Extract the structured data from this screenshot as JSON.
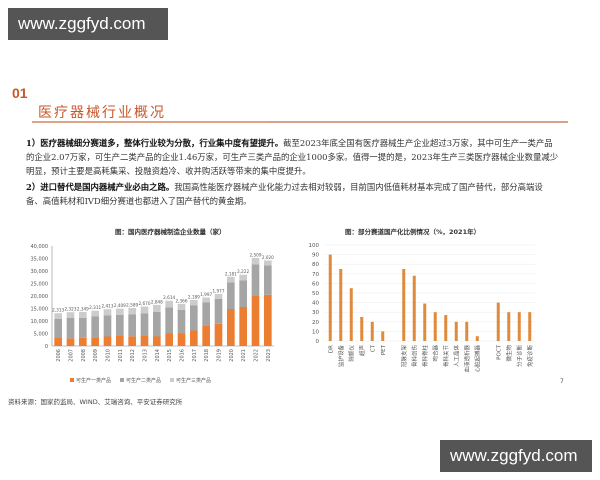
{
  "watermark": {
    "top": "www.zggfyd.com",
    "bottom": "www.zggfyd.com"
  },
  "section": {
    "number": "01",
    "title": "医疗器械行业概况"
  },
  "paragraphs": [
    {
      "lead": "1）医疗器械细分赛道多，整体行业较为分散，行业集中度有望提升。",
      "line1": "截至2023年底全国有医疗器械生产企业超过3万家，其中可生产一类产品",
      "line2": "的企业2.07万家，可生产二类产品的企业1.46万家，可生产三类产品的企业1000多家。值得一提的是，2023年生产三类医疗器械企业数量减少",
      "line3": "明显，预计主要是高耗集采、投融资趋冷、收并购活跃等带来的集中度提升。"
    },
    {
      "lead": "2）进口替代是国内器械产业必由之路。",
      "line1": "我国高性能医疗器械产业化能力过去相对较弱，目前国内低值耗材基本完成了国产替代，部分高端设",
      "line2": "备、高值耗材和IVD细分赛道也都进入了国产替代的黄金期。"
    }
  ],
  "chart_data": [
    {
      "type": "bar",
      "stacked": true,
      "title": "图：国内医疗器械制造企业数量（家）",
      "categories": [
        "2006",
        "2007",
        "2008",
        "2009",
        "2010",
        "2011",
        "2012",
        "2013",
        "2014",
        "2015",
        "2016",
        "2017",
        "2018",
        "2019",
        "2020",
        "2021",
        "2022",
        "2023"
      ],
      "series": [
        {
          "name": "可生产一类产品",
          "color": "#ed7d31",
          "values": [
            3200,
            3100,
            3300,
            3500,
            3800,
            4000,
            3900,
            4000,
            3800,
            5000,
            5000,
            6200,
            8000,
            8900,
            14800,
            15600,
            20300,
            20500
          ]
        },
        {
          "name": "可生产二类产品",
          "color": "#a5a5a5",
          "values": [
            7600,
            8100,
            8000,
            8300,
            8500,
            8500,
            8700,
            9100,
            9800,
            10500,
            9500,
            10000,
            9400,
            9900,
            10700,
            10700,
            12400,
            11700
          ]
        },
        {
          "name": "可生产三类产品",
          "color": "#cccccc",
          "values": [
            2313,
            2323,
            2349,
            2311,
            2413,
            2409,
            2589,
            2670,
            2848,
            2614,
            2366,
            2189,
            1997,
            1977,
            2181,
            2222,
            2509,
            2020
          ]
        }
      ],
      "data_labels": [
        "2,313",
        "2,323",
        "2,349",
        "2,311",
        "2,413",
        "2,409",
        "2,589",
        "2,670",
        "2,848",
        "2,614",
        "2,366",
        "2,189",
        "1,997",
        "1,977",
        "2,181",
        "2,222",
        "2,509",
        "2,020"
      ],
      "yticks": [
        "0",
        "5,000",
        "10,000",
        "15,000",
        "20,000",
        "25,000",
        "30,000",
        "35,000",
        "40,000"
      ],
      "ylim": [
        0,
        40000
      ],
      "legend": [
        "可生产一类产品",
        "可生产二类产品",
        "可生产三类产品"
      ],
      "legend_position": "bottom",
      "grid": false
    },
    {
      "type": "bar",
      "title": "图：部分赛道国产化比例情况（%，2021年）",
      "categories": [
        "DR",
        "监护设备",
        "除颤仪",
        "超声",
        "CT",
        "PET",
        "",
        "冠脉支架",
        "骨科创伤",
        "骨科脊柱",
        "吻合器",
        "骨科关节",
        "人工晶体",
        "血液透析器",
        "心脏起搏器",
        "",
        "POCT",
        "微生物",
        "分子诊断",
        "免疫诊断"
      ],
      "values": [
        90,
        75,
        55,
        25,
        20,
        10,
        null,
        75,
        68,
        39,
        30,
        27,
        20,
        20,
        5,
        null,
        40,
        30,
        30,
        30
      ],
      "color": "#e08a3c",
      "yticks": [
        "0",
        "10",
        "20",
        "30",
        "40",
        "50",
        "60",
        "70",
        "80",
        "90",
        "100"
      ],
      "ylim": [
        0,
        100
      ],
      "grid": true
    }
  ],
  "source": "资料来源：国家药监局、WIND、艾瑞咨询、平安证券研究所",
  "page_number": "7"
}
